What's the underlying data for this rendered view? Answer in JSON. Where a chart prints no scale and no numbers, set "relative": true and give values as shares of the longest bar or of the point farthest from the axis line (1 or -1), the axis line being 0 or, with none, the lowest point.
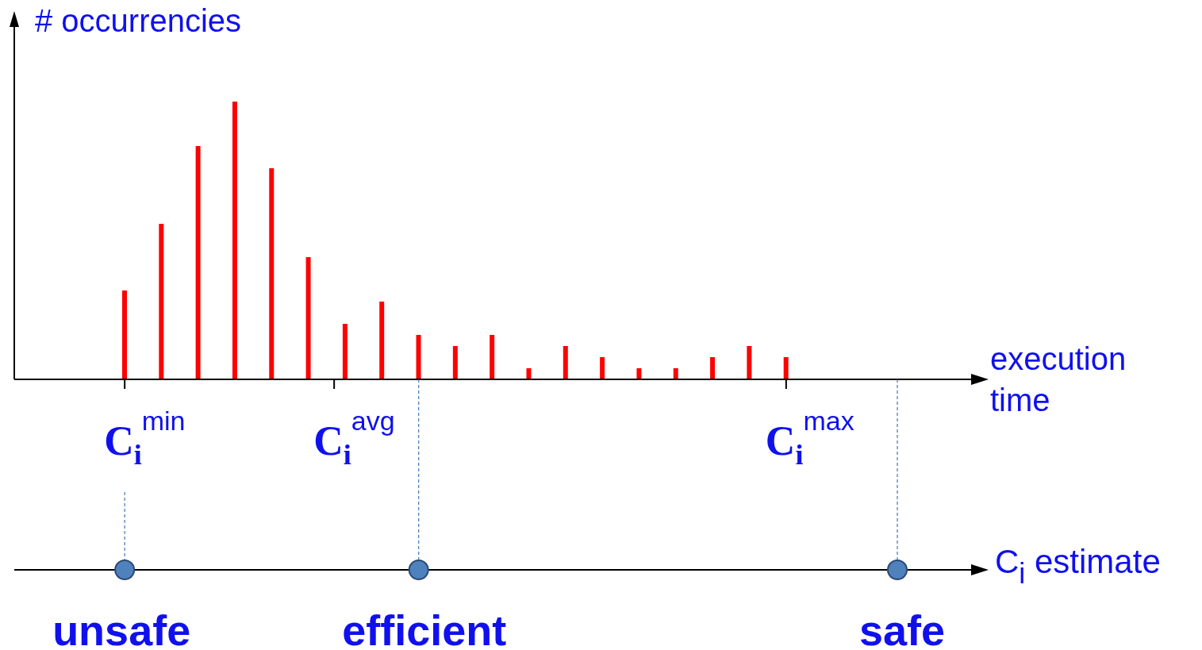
{
  "chart_data": {
    "type": "bar",
    "relative": true,
    "ylabel": "# occurrencies",
    "categories": [
      null,
      null,
      null,
      null,
      null,
      null,
      null,
      null,
      null,
      null,
      null,
      null,
      null,
      null,
      null,
      null,
      null,
      null,
      null
    ],
    "values": [
      0.32,
      0.56,
      0.84,
      1.0,
      0.76,
      0.44,
      0.2,
      0.28,
      0.16,
      0.12,
      0.16,
      0.04,
      0.12,
      0.08,
      0.04,
      0.04,
      0.08,
      0.12,
      0.08
    ],
    "color": "#ff0000",
    "annotations": [
      "C$_{i}$$^{min}$",
      "C$_{i}$$^{avg}$",
      "C$_{i}$$^{max}$",
      "C$_{i}$ estimate",
      "unsafe",
      "efficient",
      "safe",
      "execution time"
    ]
  }
}
